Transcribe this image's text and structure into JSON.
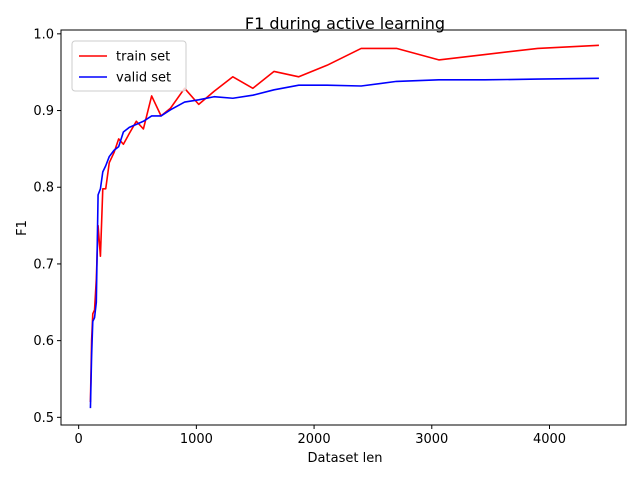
{
  "chart_data": {
    "type": "line",
    "title": "F1 during active learning",
    "xlabel": "Dataset len",
    "ylabel": "F1",
    "xlim": [
      -150,
      4650
    ],
    "ylim": [
      0.49,
      1.005
    ],
    "xticks": [
      0,
      1000,
      2000,
      3000,
      4000
    ],
    "xtick_labels": [
      "0",
      "1000",
      "2000",
      "3000",
      "4000"
    ],
    "yticks": [
      0.5,
      0.6,
      0.7,
      0.8,
      0.9,
      1.0
    ],
    "ytick_labels": [
      "0.5",
      "0.6",
      "0.7",
      "0.8",
      "0.9",
      "1.0"
    ],
    "grid": false,
    "legend_position": "top-left",
    "series": [
      {
        "name": "train set",
        "color": "#ff0000",
        "x": [
          100,
          110,
          120,
          135,
          150,
          165,
          185,
          205,
          230,
          260,
          300,
          340,
          380,
          430,
          490,
          550,
          620,
          700,
          780,
          900,
          1020,
          1150,
          1310,
          1480,
          1660,
          1870,
          2110,
          2400,
          2700,
          3060,
          3450,
          3900,
          4420
        ],
        "y": [
          0.52,
          0.6,
          0.635,
          0.64,
          0.68,
          0.75,
          0.71,
          0.798,
          0.798,
          0.832,
          0.845,
          0.863,
          0.856,
          0.87,
          0.886,
          0.876,
          0.919,
          0.893,
          0.903,
          0.929,
          0.908,
          0.925,
          0.944,
          0.929,
          0.951,
          0.944,
          0.959,
          0.981,
          0.981,
          0.966,
          0.973,
          0.981,
          0.985
        ]
      },
      {
        "name": "valid set",
        "color": "#0000ff",
        "x": [
          100,
          110,
          120,
          135,
          150,
          165,
          185,
          205,
          230,
          260,
          300,
          340,
          380,
          430,
          490,
          550,
          620,
          700,
          780,
          900,
          1020,
          1150,
          1310,
          1480,
          1660,
          1870,
          2110,
          2400,
          2700,
          3060,
          3450,
          3900,
          4420
        ],
        "y": [
          0.512,
          0.58,
          0.625,
          0.63,
          0.65,
          0.79,
          0.798,
          0.82,
          0.828,
          0.84,
          0.848,
          0.853,
          0.872,
          0.878,
          0.882,
          0.886,
          0.893,
          0.893,
          0.901,
          0.911,
          0.914,
          0.918,
          0.916,
          0.92,
          0.927,
          0.933,
          0.933,
          0.932,
          0.938,
          0.94,
          0.94,
          0.941,
          0.942
        ]
      }
    ]
  }
}
